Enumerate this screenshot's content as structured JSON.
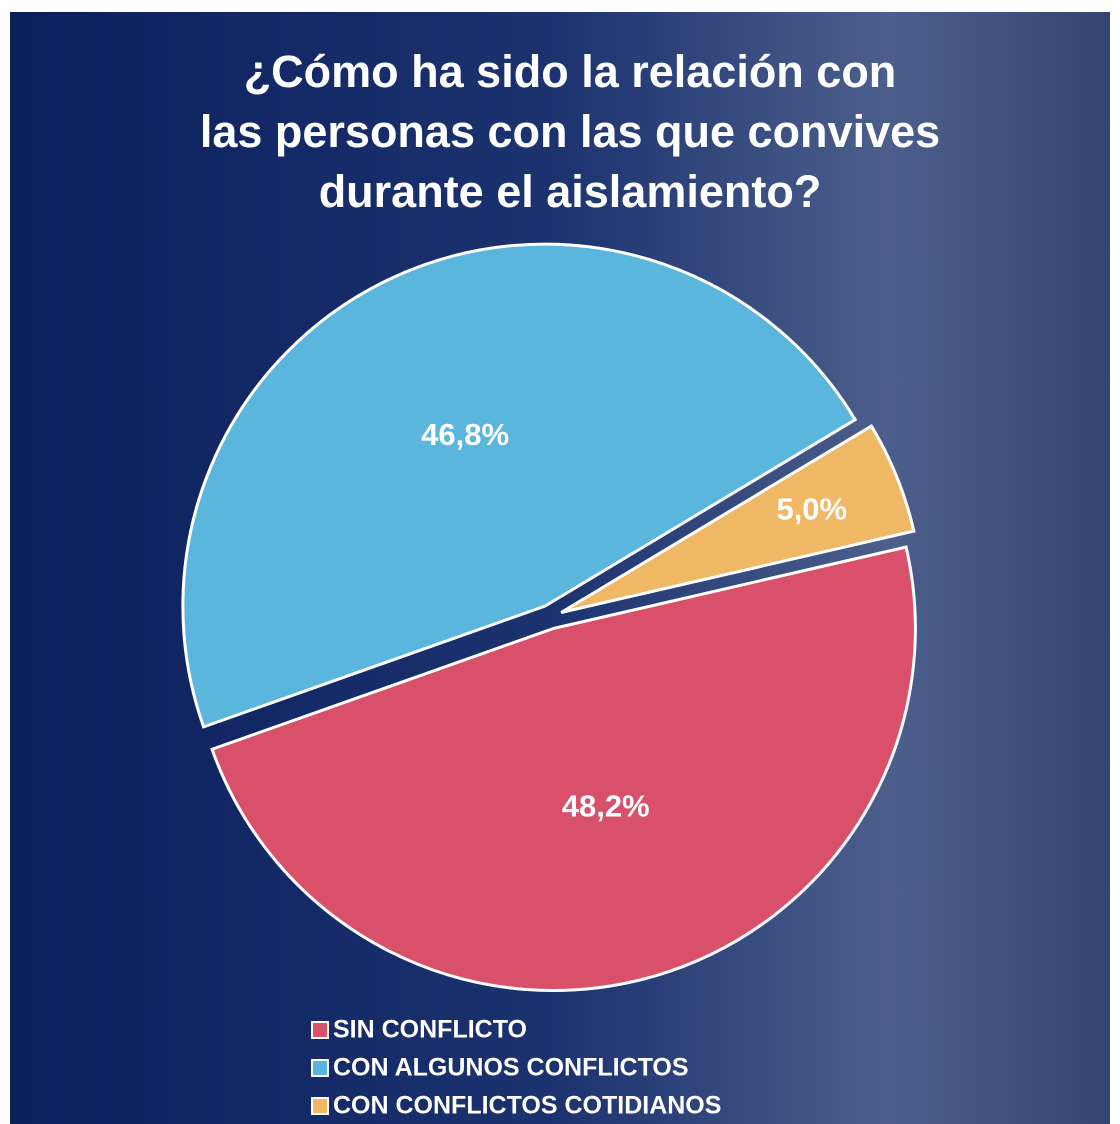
{
  "chart_data": {
    "type": "pie",
    "title": [
      "¿Cómo ha sido la relación con",
      "las personas con las que convives",
      "durante el aislamiento?"
    ],
    "categories": [
      "SIN CONFLICTO",
      "CON ALGUNOS CONFLICTOS",
      "CON CONFLICTOS COTIDIANOS"
    ],
    "values": [
      48.2,
      46.8,
      5.0
    ],
    "value_labels": [
      "48,2%",
      "46,8%",
      "5,0%"
    ],
    "colors": [
      "#d9506a",
      "#5ab6dc",
      "#efb865"
    ]
  }
}
